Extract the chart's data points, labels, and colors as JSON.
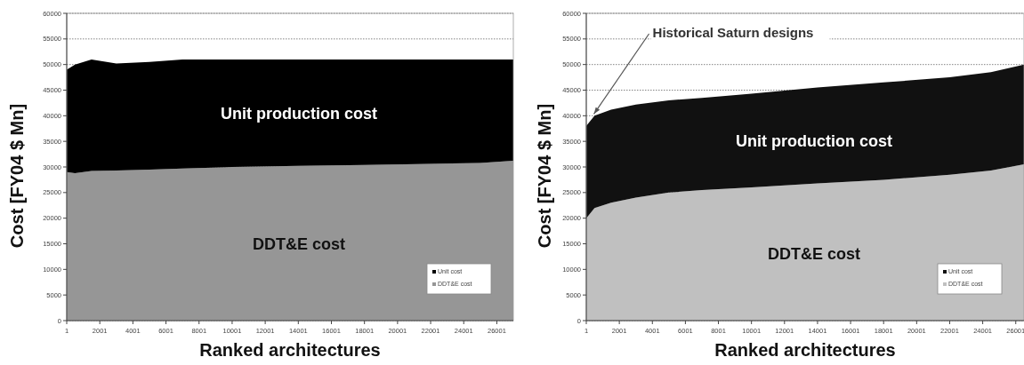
{
  "chart_data": [
    {
      "type": "area",
      "stacked": true,
      "xlabel": "Ranked architectures",
      "ylabel": "Cost [FY04 $ Mn]",
      "x": [
        1,
        500,
        1500,
        3000,
        5000,
        7000,
        10000,
        14000,
        18000,
        22000,
        25000,
        27000
      ],
      "series": [
        {
          "name": "DDT&E cost",
          "color": "#969696",
          "values": [
            29000,
            28800,
            29200,
            29300,
            29500,
            29700,
            30000,
            30200,
            30400,
            30600,
            30800,
            31200
          ]
        },
        {
          "name": "Unit cost",
          "color": "#000000",
          "values": [
            20000,
            21200,
            21800,
            20900,
            21000,
            21300,
            21000,
            20800,
            20600,
            20400,
            20200,
            19800
          ]
        }
      ],
      "xlim": [
        1,
        27000
      ],
      "xticks": [
        1,
        2001,
        4001,
        6001,
        8001,
        10001,
        12001,
        14001,
        16001,
        18001,
        20001,
        22001,
        24001,
        26001
      ],
      "ylim": [
        0,
        60000
      ],
      "yticks": [
        0,
        5000,
        10000,
        15000,
        20000,
        25000,
        30000,
        35000,
        40000,
        45000,
        50000,
        55000,
        60000
      ],
      "grid": "y",
      "legend": "bottom right",
      "annotations": [
        "Unit production cost",
        "DDT&E cost"
      ]
    },
    {
      "type": "area",
      "stacked": true,
      "xlabel": "Ranked architectures",
      "ylabel": "Cost [FY04 $ Mn]",
      "x": [
        1,
        500,
        1500,
        3000,
        5000,
        7000,
        10000,
        14000,
        18000,
        22000,
        24500,
        26500
      ],
      "series": [
        {
          "name": "DDT&E cost",
          "color": "#c0c0c0",
          "values": [
            20000,
            22000,
            23000,
            24000,
            25000,
            25500,
            26000,
            26800,
            27500,
            28500,
            29300,
            30500
          ]
        },
        {
          "name": "Unit cost",
          "color": "#111111",
          "values": [
            18000,
            18000,
            18200,
            18200,
            18000,
            18000,
            18300,
            18700,
            19000,
            19000,
            19200,
            19500
          ]
        }
      ],
      "xlim": [
        1,
        26500
      ],
      "xticks": [
        1,
        2001,
        4001,
        6001,
        8001,
        10001,
        12001,
        14001,
        16001,
        18001,
        20001,
        22001,
        24001,
        26001
      ],
      "ylim": [
        0,
        60000
      ],
      "yticks": [
        0,
        5000,
        10000,
        15000,
        20000,
        25000,
        30000,
        35000,
        40000,
        45000,
        50000,
        55000,
        60000
      ],
      "grid": "y",
      "legend": "bottom right",
      "annotations": [
        {
          "text": "Historical Saturn designs",
          "x": 300,
          "y": 40000
        },
        "Unit production cost",
        "DDT&E cost"
      ]
    }
  ]
}
